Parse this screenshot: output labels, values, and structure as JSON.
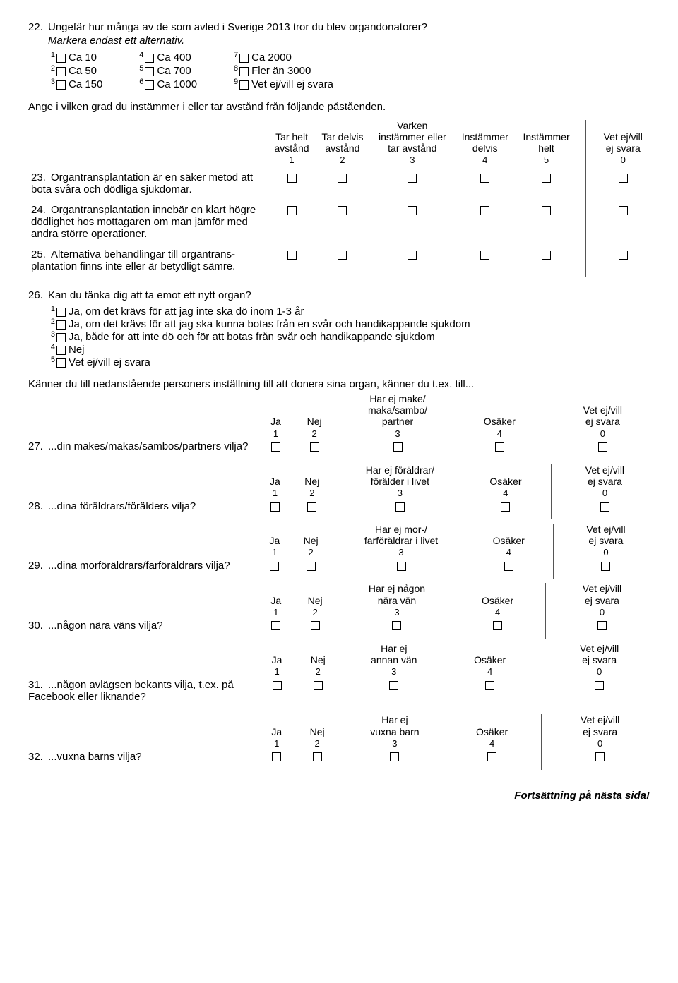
{
  "q22": {
    "number": "22.",
    "text": "Ungefär hur många av de som avled i Sverige 2013 tror du blev organdonatorer?",
    "hint": "Markera endast ett alternativ.",
    "options": [
      {
        "n": "1",
        "label": "Ca 10"
      },
      {
        "n": "2",
        "label": "Ca 50"
      },
      {
        "n": "3",
        "label": "Ca 150"
      },
      {
        "n": "4",
        "label": "Ca 400"
      },
      {
        "n": "5",
        "label": "Ca 700"
      },
      {
        "n": "6",
        "label": "Ca 1000"
      },
      {
        "n": "7",
        "label": "Ca 2000"
      },
      {
        "n": "8",
        "label": "Fler än 3000"
      },
      {
        "n": "9",
        "label": "Vet ej/vill ej svara"
      }
    ]
  },
  "agree_intro": "Ange i vilken grad du instämmer i eller tar avstånd från följande påståenden.",
  "agree_headers": [
    {
      "lines": [
        "Tar helt",
        "avstånd"
      ],
      "num": "1"
    },
    {
      "lines": [
        "Tar delvis",
        "avstånd"
      ],
      "num": "2"
    },
    {
      "lines": [
        "Varken",
        "instämmer eller",
        "tar avstånd"
      ],
      "num": "3"
    },
    {
      "lines": [
        "Instämmer",
        "delvis"
      ],
      "num": "4"
    },
    {
      "lines": [
        "Instämmer",
        "helt"
      ],
      "num": "5"
    },
    {
      "lines": [
        "Vet ej/vill",
        "ej svara"
      ],
      "num": "0"
    }
  ],
  "agree_rows": [
    {
      "num": "23.",
      "text": "Organtransplantation är en säker metod att bota svåra och dödliga sjukdomar."
    },
    {
      "num": "24.",
      "text": "Organtransplantation innebär en klart högre dödlighet hos mottagaren om man jämför med andra större operationer."
    },
    {
      "num": "25.",
      "text": "Alternativa behandlingar till organtrans­plantation finns inte eller är betydligt sämre."
    }
  ],
  "q26": {
    "number": "26.",
    "text": "Kan du tänka dig att ta emot ett nytt organ?",
    "options": [
      {
        "n": "1",
        "label": "Ja, om det krävs för att jag inte ska dö inom 1-3 år"
      },
      {
        "n": "2",
        "label": "Ja, om det krävs för att jag ska kunna botas från en svår och handikappande sjukdom"
      },
      {
        "n": "3",
        "label": "Ja, både för att inte dö och för att botas från svår och handikappande sjukdom"
      },
      {
        "n": "4",
        "label": "Nej"
      },
      {
        "n": "5",
        "label": "Vet ej/vill ej svara"
      }
    ]
  },
  "know_intro": "Känner du till nedanstående personers inställning till att donera sina organ, känner du t.ex. till...",
  "know_rows": [
    {
      "num": "27.",
      "text": "...din makes/makas/sambos/partners vilja?",
      "mid": [
        "Har ej make/",
        "maka/sambo/",
        "partner"
      ]
    },
    {
      "num": "28.",
      "text": "...dina föräldrars/förälders vilja?",
      "mid": [
        "Har ej föräldrar/",
        "förälder i livet"
      ]
    },
    {
      "num": "29.",
      "text": "...dina morföräldrars/farföräldrars vilja?",
      "mid": [
        "Har ej mor-/",
        "farföräldrar i livet"
      ]
    },
    {
      "num": "30.",
      "text": "...någon nära väns vilja?",
      "mid": [
        "Har ej någon",
        "nära vän"
      ]
    },
    {
      "num": "31.",
      "text": "...någon avlägsen bekants vilja, t.ex. på Facebook eller liknande?",
      "mid": [
        "Har ej",
        "annan vän"
      ]
    },
    {
      "num": "32.",
      "text": "...vuxna barns vilja?",
      "mid": [
        "Har ej",
        "vuxna barn"
      ]
    }
  ],
  "know_headers": {
    "ja": "Ja",
    "nej": "Nej",
    "osaker": "Osäker",
    "vet": [
      "Vet ej/vill",
      "ej svara"
    ],
    "nums": [
      "1",
      "2",
      "3",
      "4",
      "0"
    ]
  },
  "footer": "Fortsättning på nästa sida!"
}
